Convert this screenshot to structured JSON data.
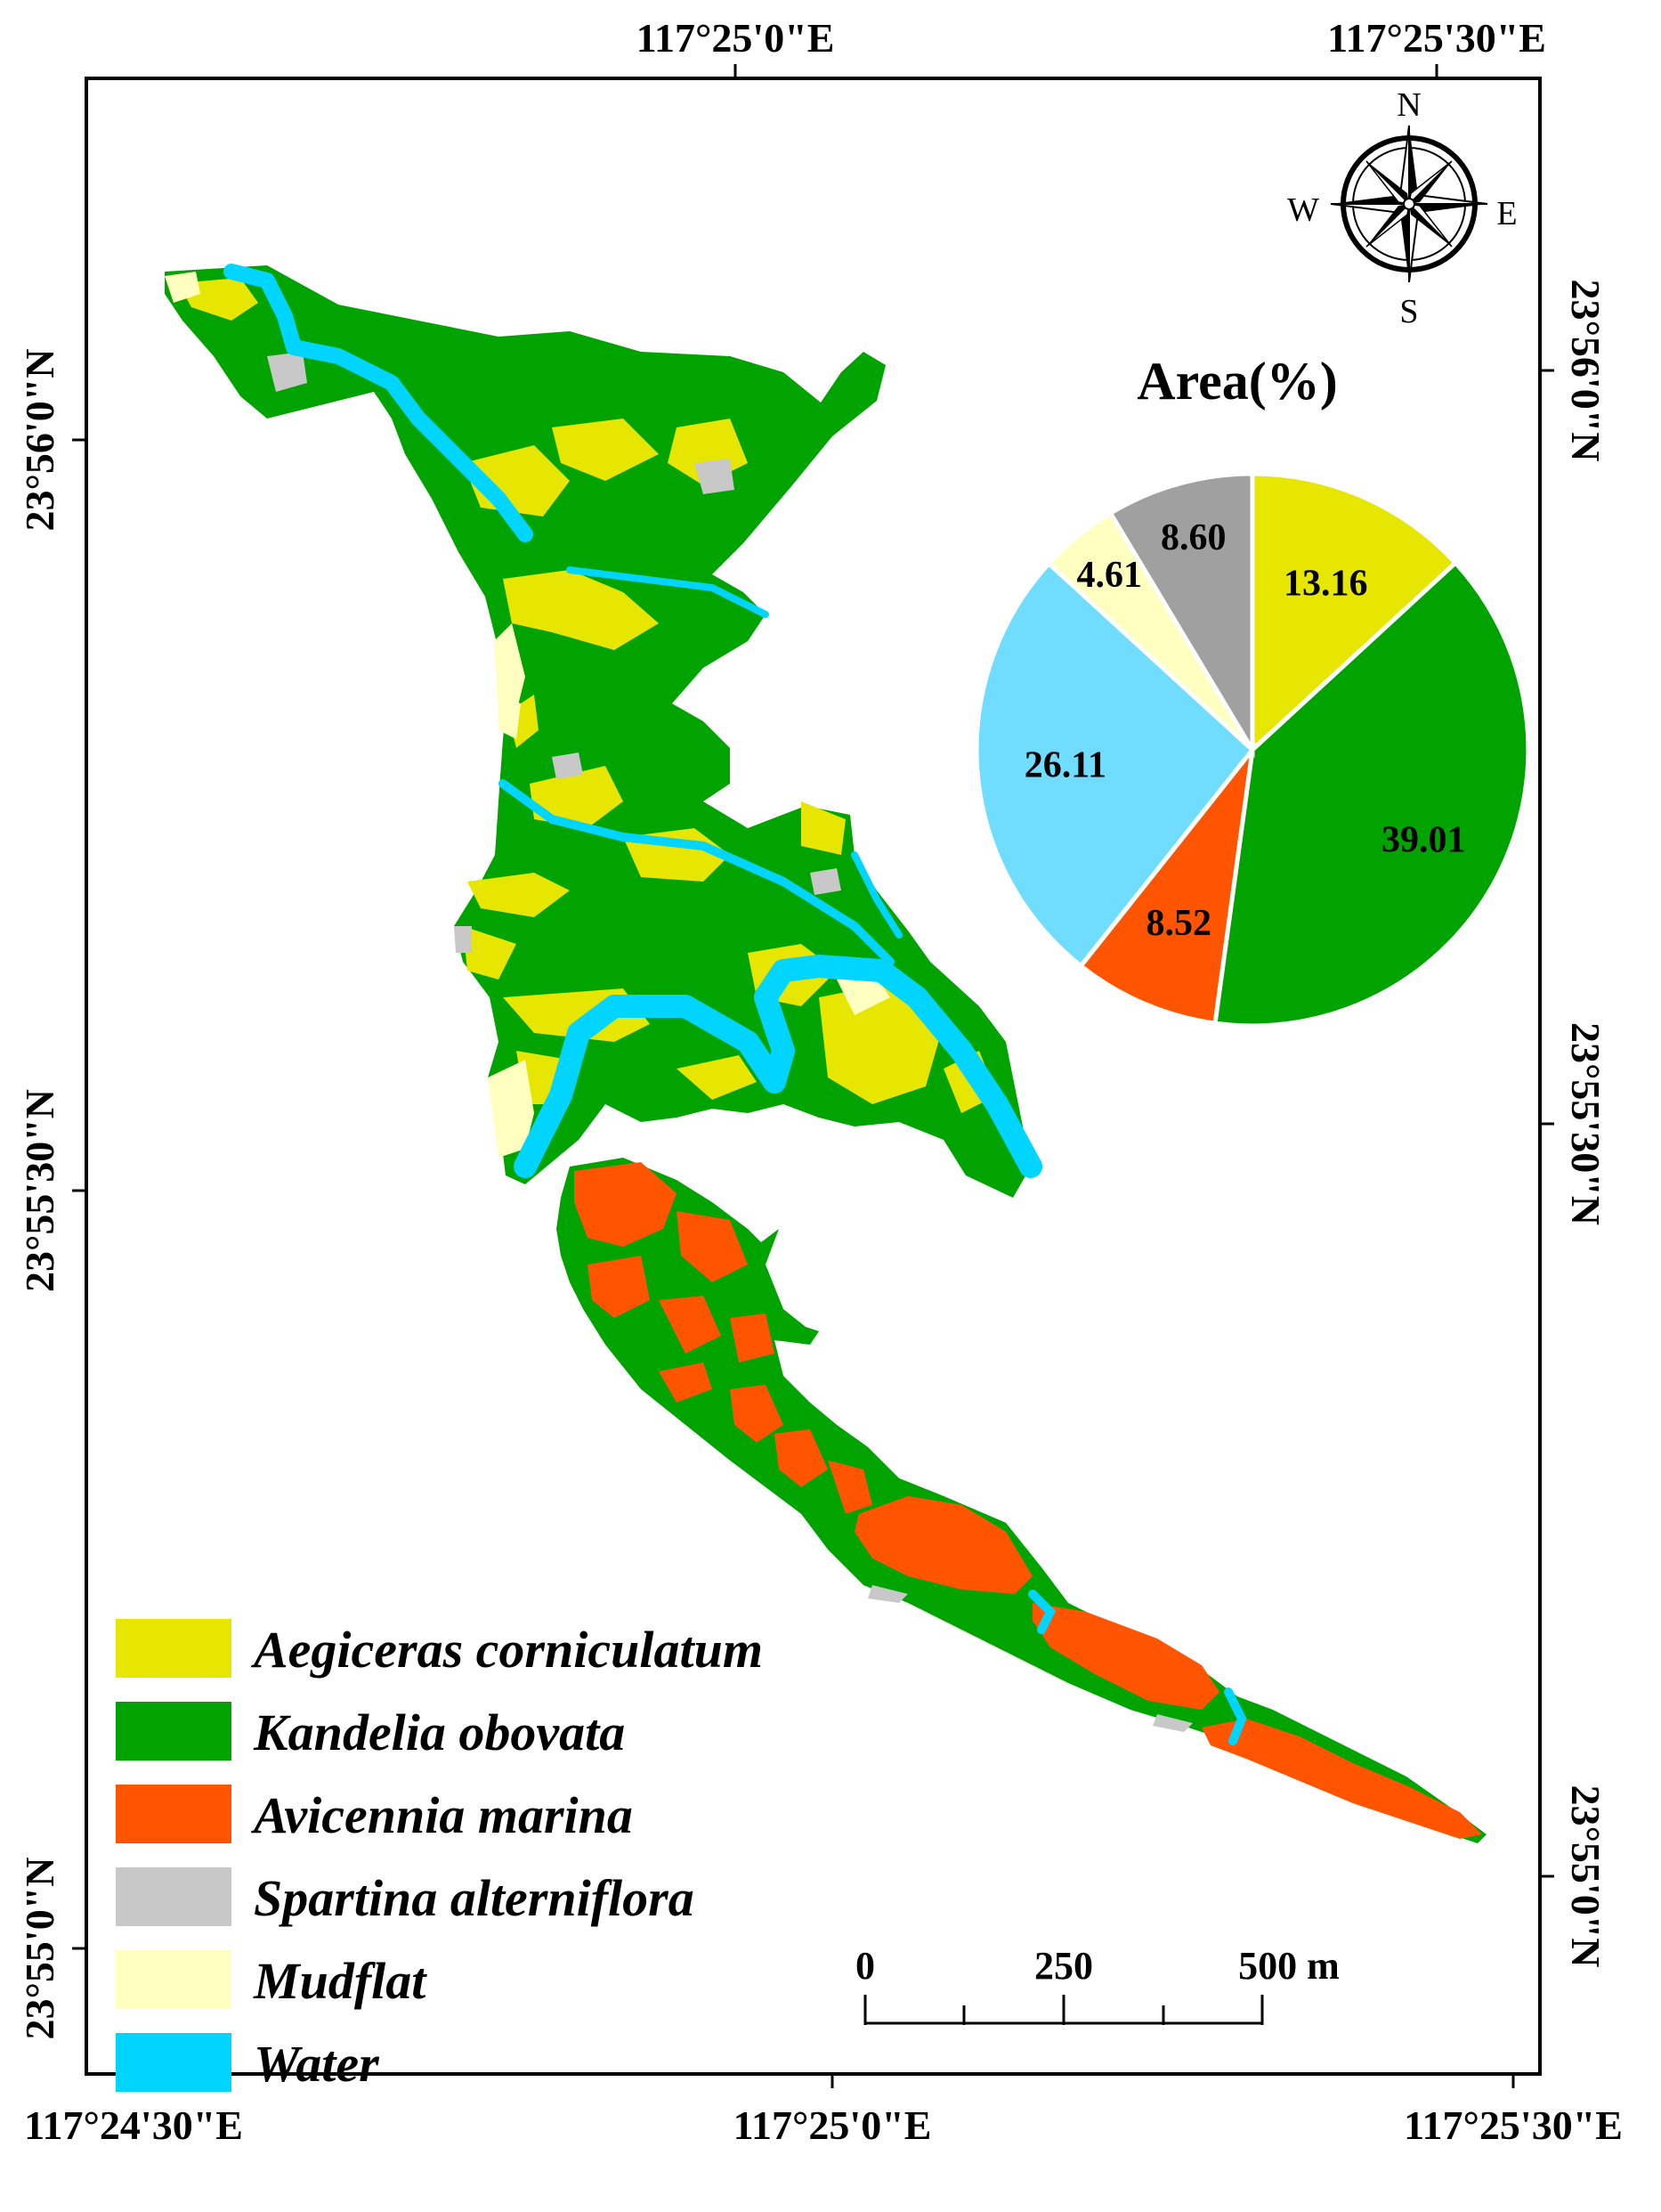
{
  "graticule": {
    "top_labels": [
      "117°25'0\"E",
      "117°25'30\"E"
    ],
    "bottom_labels": [
      "117°24'30\"E",
      "117°25'0\"E",
      "117°25'30\"E"
    ],
    "left_labels": [
      "23°56'0\"N",
      "23°55'30\"N",
      "23°55'0\"N"
    ],
    "right_labels": [
      "23°56'0\"N",
      "23°55'30\"N",
      "23°55'0\"N"
    ]
  },
  "compass": {
    "north": "N",
    "south": "S",
    "east": "E",
    "west": "W"
  },
  "legend": {
    "items": [
      {
        "label": "Aegiceras corniculatum",
        "color": "#e6e600"
      },
      {
        "label": "Kandelia obovata",
        "color": "#00a300"
      },
      {
        "label": "Avicennia marina",
        "color": "#ff5500"
      },
      {
        "label": "Spartina alterniflora",
        "color": "#c8c8c8"
      },
      {
        "label": "Mudflat",
        "color": "#ffffc0"
      },
      {
        "label": "Water",
        "color": "#00d5ff"
      }
    ]
  },
  "scale_bar": {
    "labels": [
      "0",
      "250",
      "500 m"
    ]
  },
  "chart_data": {
    "type": "pie",
    "title": "Area(%)",
    "slices": [
      {
        "label": "Aegiceras corniculatum",
        "value": 13.16,
        "value_text": "13.16",
        "color": "#e6e600"
      },
      {
        "label": "Kandelia obovata",
        "value": 39.01,
        "value_text": "39.01",
        "color": "#00a300"
      },
      {
        "label": "Avicennia marina",
        "value": 8.52,
        "value_text": "8.52",
        "color": "#ff5500"
      },
      {
        "label": "Water",
        "value": 26.11,
        "value_text": "26.11",
        "color": "#70ddff"
      },
      {
        "label": "Mudflat",
        "value": 4.61,
        "value_text": "4.61",
        "color": "#ffffc0"
      },
      {
        "label": "Spartina alterniflora",
        "value": 8.6,
        "value_text": "8.60",
        "color": "#a0a0a0"
      }
    ]
  }
}
